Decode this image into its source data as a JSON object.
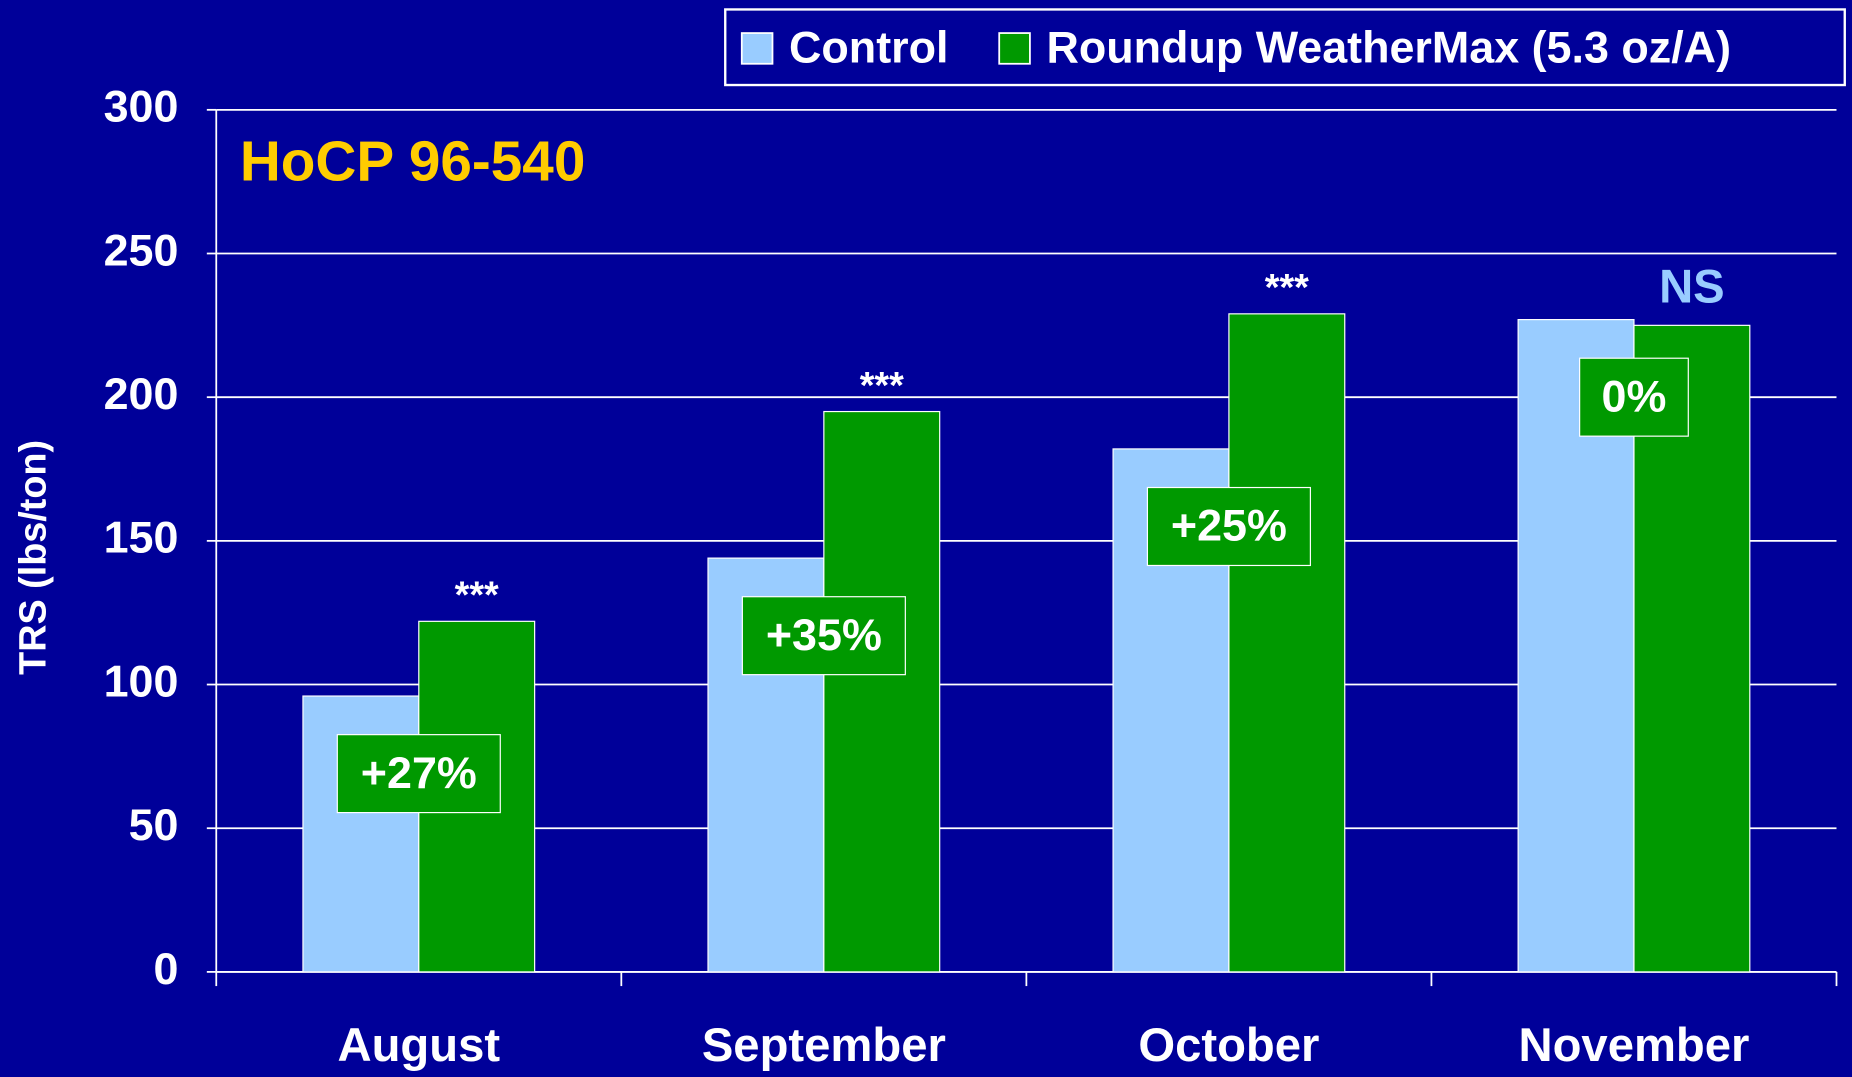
{
  "chart_data": {
    "type": "bar",
    "subtitle": "HoCP 96-540",
    "y_label": "TRS (lbs/ton)",
    "categories": [
      "August",
      "September",
      "October",
      "November"
    ],
    "series": [
      {
        "name": "Control",
        "color": "#99ccff",
        "values": [
          96,
          144,
          182,
          227
        ]
      },
      {
        "name": "Roundup WeatherMax (5.3 oz/A)",
        "color": "#009900",
        "values": [
          122,
          195,
          229,
          225
        ]
      }
    ],
    "significance": [
      "***",
      "***",
      "***",
      "NS"
    ],
    "change_labels": [
      "+27%",
      "+35%",
      "+25%",
      "0%"
    ],
    "ylim": [
      0,
      300
    ],
    "yticks": [
      0,
      50,
      100,
      150,
      200,
      250,
      300
    ],
    "grid": true,
    "legend": "top-right"
  }
}
